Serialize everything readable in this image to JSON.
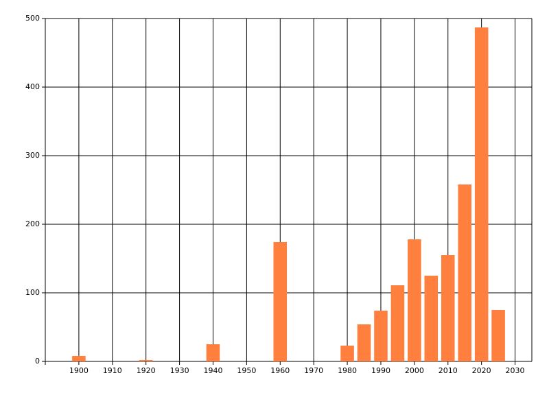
{
  "chart_data": {
    "type": "bar",
    "x": [
      1900,
      1920,
      1940,
      1960,
      1980,
      1985,
      1990,
      1995,
      2000,
      2005,
      2010,
      2015,
      2020,
      2025
    ],
    "values": [
      8,
      2,
      25,
      174,
      23,
      54,
      74,
      111,
      178,
      125,
      155,
      258,
      487,
      75
    ],
    "color": "#ff7f3f",
    "xlim": [
      1890,
      2035
    ],
    "xticks": [
      1900,
      1910,
      1920,
      1930,
      1940,
      1950,
      1960,
      1970,
      1980,
      1990,
      2000,
      2010,
      2020,
      2030
    ],
    "ylim": [
      0,
      500
    ],
    "yticks": [
      0,
      100,
      200,
      300,
      400,
      500
    ],
    "grid": true
  }
}
